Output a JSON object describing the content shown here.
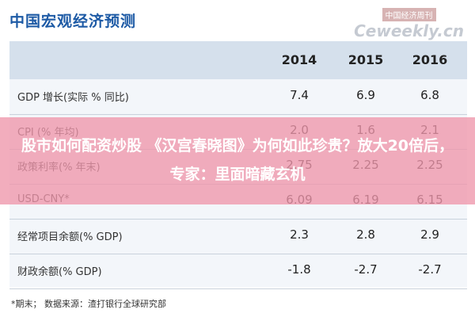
{
  "header": {
    "title": "中国宏观经济预测",
    "watermark_cn": "中国经济周刊",
    "watermark_en": "Ceweekly.cn"
  },
  "table": {
    "columns": [
      "2014",
      "2015",
      "2016"
    ],
    "rows": [
      [
        "GDP 增长(实际 % 同比)",
        "7.4",
        "6.9",
        "6.8"
      ],
      [
        "CPI (% 年均)",
        "2.0",
        "1.6",
        "2.1"
      ],
      [
        "政策利率(% 年末)",
        "2.75",
        "2.25",
        "2.25"
      ],
      [
        "USD-CNY*",
        "6.09",
        "6.19",
        "6.15"
      ],
      [
        "经常项目余额(% GDP)",
        "2.3",
        "2.8",
        "2.9"
      ],
      [
        "财政余额(% GDP)",
        "-1.8",
        "-2.7",
        "-2.7"
      ]
    ]
  },
  "footnote": "*期末；  数据来源：渣打银行全球研究部",
  "overlay": "股市如何配资炒股 《汉宫春晓图》为何如此珍贵？放大20倍后，专家：里面暗藏玄机"
}
